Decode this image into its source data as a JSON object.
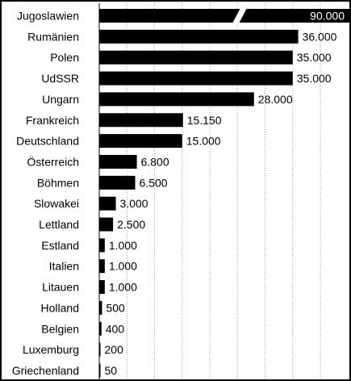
{
  "chart_data": {
    "type": "bar",
    "orientation": "horizontal",
    "title": "",
    "xlabel": "",
    "ylabel": "",
    "grid": true,
    "axis_break": true,
    "xlim": [
      0,
      37000
    ],
    "categories": [
      "Jugoslawien",
      "Rumänien",
      "Polen",
      "UdSSR",
      "Ungarn",
      "Frankreich",
      "Deutschland",
      "Österreich",
      "Böhmen",
      "Slowakei",
      "Lettland",
      "Estland",
      "Italien",
      "Litauen",
      "Holland",
      "Belgien",
      "Luxemburg",
      "Griechenland"
    ],
    "values": [
      90000,
      36000,
      35000,
      35000,
      28000,
      15150,
      15000,
      6800,
      6500,
      3000,
      2500,
      1000,
      1000,
      1000,
      500,
      400,
      200,
      50
    ],
    "value_labels": [
      "90.000",
      "36.000",
      "35.000",
      "35.000",
      "28.000",
      "15.150",
      "15.000",
      "6.800",
      "6.500",
      "3.000",
      "2.500",
      "1.000",
      "1.000",
      "1.000",
      "500",
      "400",
      "200",
      "50"
    ],
    "colors": {
      "bar": "#000000",
      "grid": "#9a9a9a",
      "background": "#ffffff"
    }
  }
}
